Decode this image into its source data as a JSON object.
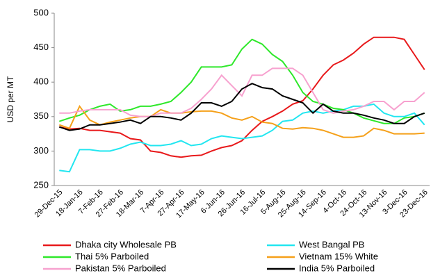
{
  "chart_data": {
    "type": "line",
    "y_label": "USD per MT",
    "categories": [
      "29-Dec-15",
      null,
      "18-Jan-16",
      null,
      "7-Feb-16",
      null,
      "27-Feb-16",
      null,
      "18-Mar-16",
      null,
      "7-Apr-16",
      null,
      "27-Apr-16",
      null,
      "17-May-16",
      null,
      "6-Jun-16",
      null,
      "26-Jun-16",
      null,
      "16-Jul-16",
      null,
      "5-Aug-16",
      null,
      "25-Aug-16",
      null,
      "14-Sep-16",
      null,
      "4-Oct-16",
      null,
      "24-Oct-16",
      null,
      "13-Nov-16",
      null,
      "3-Dec-16",
      null,
      "23-Dec-16"
    ],
    "ylim": [
      250,
      500
    ],
    "yticks": [
      250,
      300,
      350,
      400,
      450,
      500
    ],
    "grid": false,
    "series": [
      {
        "name": "Dhaka city Wholesale PB",
        "color": "#e8191b",
        "values": [
          335,
          332,
          333,
          330,
          330,
          328,
          326,
          318,
          316,
          300,
          298,
          293,
          291,
          293,
          294,
          300,
          305,
          308,
          315,
          330,
          343,
          350,
          358,
          368,
          373,
          390,
          410,
          425,
          432,
          442,
          455,
          465,
          465,
          465,
          462,
          440,
          418
        ]
      },
      {
        "name": "West Bangal PB",
        "color": "#22e6f0",
        "values": [
          272,
          270,
          302,
          302,
          300,
          300,
          304,
          310,
          313,
          308,
          308,
          310,
          315,
          308,
          310,
          318,
          322,
          320,
          318,
          320,
          322,
          330,
          343,
          345,
          355,
          358,
          355,
          358,
          360,
          365,
          365,
          368,
          355,
          350,
          350,
          355,
          338
        ]
      },
      {
        "name": "Thai 5% Parboiled",
        "color": "#2ee82a",
        "values": [
          343,
          348,
          352,
          360,
          365,
          368,
          358,
          360,
          365,
          365,
          368,
          372,
          385,
          400,
          422,
          422,
          422,
          425,
          448,
          462,
          455,
          440,
          430,
          410,
          385,
          372,
          368,
          362,
          360,
          355,
          348,
          344,
          340,
          340,
          348,
          350,
          355
        ]
      },
      {
        "name": "Vietnam 15% White",
        "color": "#f5a019",
        "values": [
          338,
          333,
          365,
          345,
          338,
          342,
          345,
          348,
          350,
          350,
          360,
          355,
          355,
          357,
          358,
          358,
          355,
          348,
          345,
          350,
          342,
          340,
          333,
          332,
          334,
          333,
          330,
          325,
          320,
          320,
          322,
          333,
          330,
          325,
          325,
          325,
          326
        ]
      },
      {
        "name": "Pakistan 5% Parboiled",
        "color": "#f7a1cf",
        "values": [
          355,
          355,
          358,
          360,
          360,
          360,
          360,
          352,
          350,
          350,
          355,
          355,
          355,
          362,
          375,
          390,
          410,
          395,
          380,
          410,
          410,
          420,
          420,
          420,
          410,
          385,
          360,
          355,
          358,
          360,
          365,
          372,
          372,
          360,
          372,
          372,
          385
        ]
      },
      {
        "name": "India 5% Parboiled",
        "color": "#000000",
        "values": [
          335,
          330,
          332,
          338,
          338,
          340,
          342,
          345,
          340,
          350,
          350,
          348,
          345,
          355,
          370,
          370,
          365,
          372,
          390,
          398,
          392,
          390,
          380,
          375,
          370,
          355,
          368,
          358,
          355,
          355,
          352,
          348,
          345,
          340,
          340,
          350,
          355
        ]
      }
    ]
  }
}
